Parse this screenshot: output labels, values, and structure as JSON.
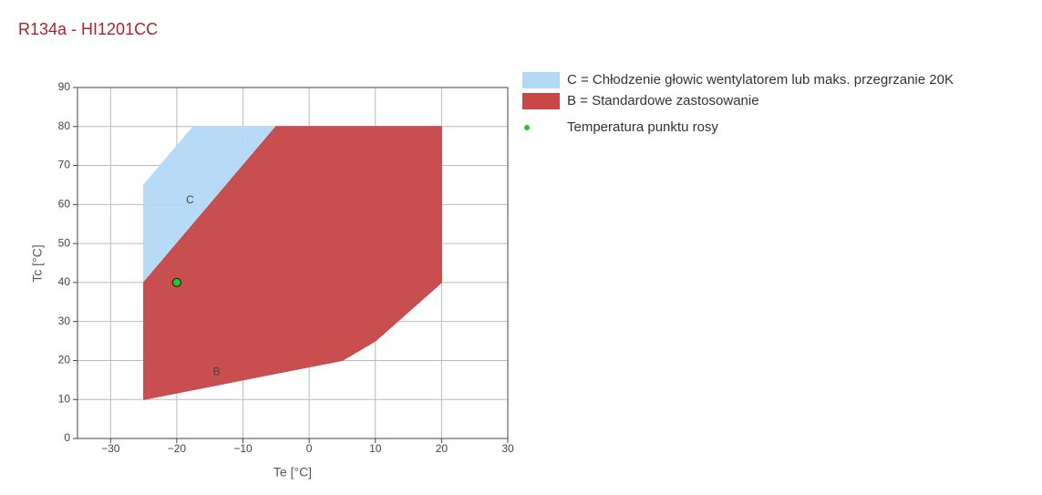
{
  "chart_data": {
    "type": "area",
    "title": "R134a - HI1201CC",
    "x_label": "Te [°C]",
    "y_label": "Tc [°C]",
    "xlim": [
      -35,
      30
    ],
    "ylim": [
      0,
      90
    ],
    "xticks": [
      {
        "value": -30,
        "label": "−30"
      },
      {
        "value": -20,
        "label": "−20"
      },
      {
        "value": -10,
        "label": "−10"
      },
      0,
      10,
      20,
      30
    ],
    "yticks": [
      0,
      10,
      20,
      30,
      40,
      50,
      60,
      70,
      80,
      90
    ],
    "grid": true,
    "legend": "right",
    "series": [
      {
        "name": "C = Chłodzenie głowic wentylatorem lub maks. przegrzanie 20K",
        "color": "#b3d9f7",
        "x": [
          -25,
          -25,
          -17.5,
          20,
          20,
          10,
          5,
          -25
        ],
        "y": [
          10,
          65,
          80,
          80,
          40,
          25,
          20,
          10
        ]
      },
      {
        "name": "B = Standardowe zastosowanie",
        "color": "#c94747",
        "x": [
          -25,
          -25,
          -5,
          20,
          20,
          10,
          5
        ],
        "y": [
          10,
          40,
          80,
          80,
          40,
          25,
          20
        ]
      },
      {
        "name": "Temperatura punktu rosy",
        "color": "#22cc22",
        "mode": "markers",
        "x": [
          -20
        ],
        "y": [
          40
        ]
      }
    ],
    "annotations": [
      {
        "text": "C",
        "x": -18,
        "y": 61
      },
      {
        "text": "B",
        "x": -14,
        "y": 17
      }
    ]
  }
}
